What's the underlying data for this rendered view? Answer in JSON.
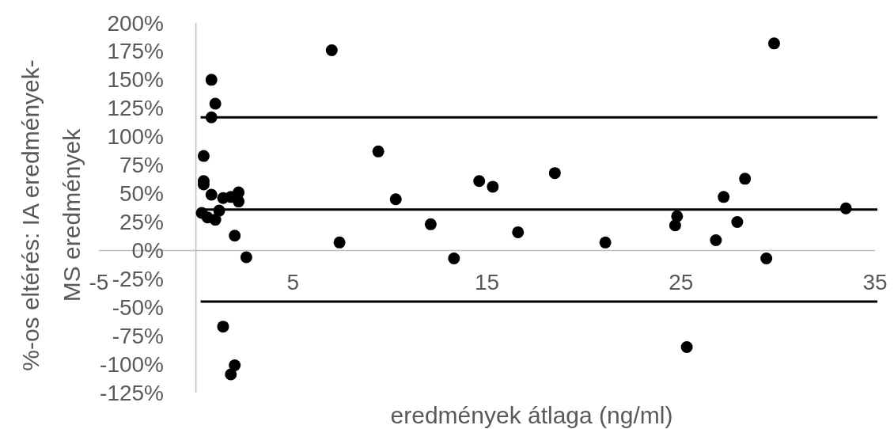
{
  "chart_data": {
    "type": "scatter",
    "xlabel": "eredmények átlaga (ng/ml)",
    "ylabel": "%-os eltérés: IA eredmények-\nMS eredmények",
    "x": [
      7.0,
      0.8,
      1.0,
      0.8,
      0.4,
      0.4,
      0.4,
      0.8,
      1.4,
      1.8,
      2.2,
      2.2,
      0.3,
      0.6,
      1.2,
      1.0,
      2.0,
      2.6,
      7.4,
      9.4,
      10.3,
      1.4,
      2.0,
      1.8,
      12.1,
      13.3,
      14.6,
      15.3,
      16.6,
      18.5,
      21.1,
      29.8,
      28.3,
      27.2,
      24.8,
      24.7,
      27.9,
      26.8,
      29.4,
      33.5,
      25.3
    ],
    "values": [
      176,
      150,
      129,
      117,
      83,
      61,
      58,
      49,
      46,
      47,
      51,
      43,
      33,
      29,
      35,
      27,
      13,
      -6,
      7,
      87,
      45,
      -67,
      -101,
      -109,
      23,
      -7,
      61,
      56,
      16,
      68,
      7,
      182,
      63,
      47,
      30,
      22,
      25,
      9,
      -7,
      37,
      -85
    ],
    "color": "#000000",
    "marker": "circle",
    "grid": false,
    "xlim": [
      -5,
      35
    ],
    "xticks": [
      -5,
      5,
      15,
      25,
      35
    ],
    "ylim": [
      -125,
      200
    ],
    "yticks": [
      {
        "value": 200,
        "label": "200%"
      },
      {
        "value": 175,
        "label": "175%"
      },
      {
        "value": 150,
        "label": "150%"
      },
      {
        "value": 125,
        "label": "125%"
      },
      {
        "value": 100,
        "label": "100%"
      },
      {
        "value": 75,
        "label": "75%"
      },
      {
        "value": 50,
        "label": "50%"
      },
      {
        "value": 25,
        "label": "25%"
      },
      {
        "value": 0,
        "label": "0%"
      },
      {
        "value": -25,
        "label": "-25%"
      },
      {
        "value": -50,
        "label": "-50%"
      },
      {
        "value": -75,
        "label": "-75%"
      },
      {
        "value": -100,
        "label": "-100%"
      },
      {
        "value": -125,
        "label": "-125%"
      }
    ],
    "ref_lines": [
      {
        "axis": "y",
        "value": 117,
        "color": "#000000"
      },
      {
        "axis": "y",
        "value": 36,
        "color": "#000000"
      },
      {
        "axis": "y",
        "value": -45,
        "color": "#000000"
      }
    ]
  }
}
